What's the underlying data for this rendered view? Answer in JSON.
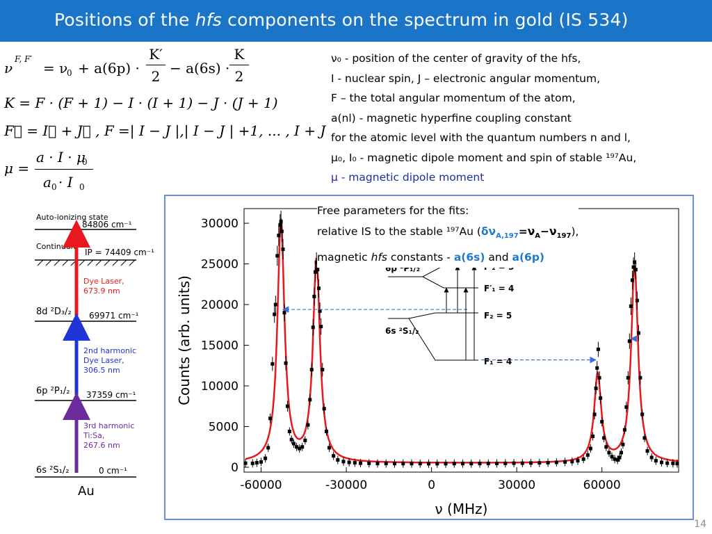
{
  "header": {
    "title_pre": "Positions of the ",
    "title_em": "hfs",
    "title_post": " components on the spectrum in gold (IS 534)"
  },
  "equations": {
    "e1_lhs": "ν",
    "e1_sup": "F, F′",
    "e1_eq": "= ν",
    "e1_sub0": "0",
    "e1_mid": "+ a(6p) ·",
    "e1_frac1_num": "K′",
    "e1_frac1_den": "2",
    "e1_mid2": "− a(6s) ·",
    "e1_frac2_num": "K",
    "e1_frac2_den": "2",
    "e2": "K = F · (F + 1) − I · (I + 1) − J · (J + 1)",
    "e3": "F⃗ = I⃗ + J⃗ ,    F =| I − J |,| I − J | +1, ... , I + J",
    "e4_lhs": "μ =",
    "e4_num": "a · I · μ",
    "e4_num_sub": "0",
    "e4_den": "a",
    "e4_den_sub1": "0",
    "e4_den_mid": " · I",
    "e4_den_sub2": "0"
  },
  "legend": {
    "l1": "ν₀ - position of the center of gravity of the hfs,",
    "l2": "I - nuclear spin, J – electronic angular momentum,",
    "l3": "F – the total angular momentum of the atom,",
    "l4": "a(nl)  - magnetic hyperfine coupling constant",
    "l5": "for the atomic level with the quantum numbers n and l,",
    "l6": "μ₀, I₀ - magnetic dipole moment and spin of stable ¹⁹⁷Au,",
    "l7": "μ - magnetic dipole moment"
  },
  "fit_note": {
    "line1": "Free parameters for the fits:",
    "line2_pre": "relative IS to the stable ¹⁹⁷Au (",
    "line2_blue": "δν",
    "line2_blue_sub": "A,197",
    "line2_eq": "=ν",
    "line2_sub_a": "A",
    "line2_minus": "−ν",
    "line2_sub_197": "197",
    "line2_post": "),",
    "line3_pre": "magnetic ",
    "line3_em": "hfs",
    "line3_mid": " constants - ",
    "line3_a6s": "a(6s)",
    "line3_and": " and ",
    "line3_a6p": "a(6p)"
  },
  "level_scheme": {
    "auto_ionizing": "Auto-ionizing state",
    "auto_energy": "84806 cm⁻¹",
    "continuum": "Continuum",
    "ip": "IP = 74409 cm⁻¹",
    "dye_laser_label": "Dye Laser,",
    "dye_laser_wl": "673.9 nm",
    "level_8d": "8d ²D₃/₂",
    "level_8d_energy": "69971 cm⁻¹",
    "harm2_1": "2nd harmonic",
    "harm2_2": "Dye Laser,",
    "harm2_3": "306.5 nm",
    "level_6p": "6p ²P₁/₂",
    "level_6p_energy": "37359 cm⁻¹",
    "harm3_1": "3rd harmonic",
    "harm3_2": "Ti:Sa,",
    "harm3_3": "267.6 nm",
    "level_6s": "6s ²S₁/₂",
    "level_6s_energy": "0 cm⁻¹",
    "element": "Au",
    "red": "#e8191e",
    "blue": "#1f35d9",
    "purple": "#6b2b9a"
  },
  "hfs_diagram": {
    "upper_level": "6p ²P₁/₂",
    "lower_level": "6s ²S₁/₂",
    "f2p": "F′₂ = 5",
    "f1p": "F′₁ = 4",
    "f2": "F₂ = 5",
    "f1": "F₁ = 4"
  },
  "chart_data": {
    "type": "scatter",
    "xlabel": "ν (MHz)",
    "ylabel": "Counts (arb. units)",
    "xlim": [
      -66000,
      87000
    ],
    "ylim": [
      -600,
      31800
    ],
    "xticks": [
      -60000,
      -30000,
      0,
      30000,
      60000
    ],
    "yticks": [
      0,
      5000,
      10000,
      15000,
      20000,
      25000,
      30000
    ],
    "peaks": [
      {
        "center": -53000,
        "height": 30200,
        "width": 1500
      },
      {
        "center": -40500,
        "height": 25300,
        "width": 1500
      },
      {
        "center": 58500,
        "height": 11300,
        "width": 1500
      },
      {
        "center": 71500,
        "height": 24600,
        "width": 1500
      }
    ],
    "baseline": 500,
    "points": [
      [
        -65500,
        500
      ],
      [
        -63000,
        480
      ],
      [
        -61500,
        550
      ],
      [
        -60000,
        650
      ],
      [
        -58500,
        1100
      ],
      [
        -57500,
        2400
      ],
      [
        -56800,
        6000
      ],
      [
        -56000,
        12700
      ],
      [
        -55300,
        18800
      ],
      [
        -54900,
        20000
      ],
      [
        -54300,
        26000
      ],
      [
        -53800,
        28500
      ],
      [
        -53300,
        29800
      ],
      [
        -53000,
        30200
      ],
      [
        -52700,
        29000
      ],
      [
        -52300,
        26800
      ],
      [
        -51800,
        19000
      ],
      [
        -51300,
        12800
      ],
      [
        -50700,
        7500
      ],
      [
        -50000,
        4400
      ],
      [
        -49300,
        3400
      ],
      [
        -48500,
        2900
      ],
      [
        -47500,
        2500
      ],
      [
        -46500,
        2300
      ],
      [
        -45500,
        2500
      ],
      [
        -44500,
        3300
      ],
      [
        -43500,
        5200
      ],
      [
        -42800,
        8300
      ],
      [
        -42200,
        12000
      ],
      [
        -41700,
        17200
      ],
      [
        -41300,
        21000
      ],
      [
        -40900,
        24000
      ],
      [
        -40500,
        25200
      ],
      [
        -40100,
        24300
      ],
      [
        -39700,
        22000
      ],
      [
        -39300,
        19200
      ],
      [
        -38900,
        17300
      ],
      [
        -38400,
        12000
      ],
      [
        -37800,
        7200
      ],
      [
        -37000,
        4400
      ],
      [
        -36000,
        2400
      ],
      [
        -34500,
        1400
      ],
      [
        -33000,
        900
      ],
      [
        -31000,
        700
      ],
      [
        -29000,
        600
      ],
      [
        -27000,
        550
      ],
      [
        -25000,
        500
      ],
      [
        -22000,
        480
      ],
      [
        -19000,
        460
      ],
      [
        -16000,
        460
      ],
      [
        -13000,
        450
      ],
      [
        -10000,
        450
      ],
      [
        -7000,
        450
      ],
      [
        -4000,
        450
      ],
      [
        -1000,
        440
      ],
      [
        2000,
        440
      ],
      [
        5000,
        440
      ],
      [
        8000,
        450
      ],
      [
        11000,
        450
      ],
      [
        14000,
        450
      ],
      [
        17000,
        460
      ],
      [
        20000,
        460
      ],
      [
        23000,
        470
      ],
      [
        26000,
        480
      ],
      [
        29000,
        500
      ],
      [
        32000,
        500
      ],
      [
        35000,
        520
      ],
      [
        38000,
        540
      ],
      [
        41000,
        560
      ],
      [
        44000,
        600
      ],
      [
        47000,
        650
      ],
      [
        49500,
        700
      ],
      [
        51500,
        800
      ],
      [
        53500,
        1000
      ],
      [
        55000,
        1500
      ],
      [
        56000,
        2300
      ],
      [
        56800,
        3800
      ],
      [
        57400,
        6500
      ],
      [
        57900,
        9700
      ],
      [
        58300,
        12200
      ],
      [
        58700,
        14500
      ],
      [
        59100,
        11000
      ],
      [
        59500,
        8500
      ],
      [
        60000,
        5600
      ],
      [
        60700,
        3600
      ],
      [
        61500,
        2500
      ],
      [
        62500,
        1800
      ],
      [
        63500,
        1300
      ],
      [
        64500,
        1000
      ],
      [
        65500,
        900
      ],
      [
        66200,
        1200
      ],
      [
        66800,
        1800
      ],
      [
        67400,
        2800
      ],
      [
        68000,
        4600
      ],
      [
        68600,
        7400
      ],
      [
        69200,
        11000
      ],
      [
        69700,
        15500
      ],
      [
        70200,
        19800
      ],
      [
        70700,
        23000
      ],
      [
        71100,
        24600
      ],
      [
        71500,
        25200
      ],
      [
        71900,
        24300
      ],
      [
        72400,
        20500
      ],
      [
        72900,
        16500
      ],
      [
        73500,
        11000
      ],
      [
        74200,
        6500
      ],
      [
        75000,
        3600
      ],
      [
        76000,
        2000
      ],
      [
        77500,
        1200
      ],
      [
        79000,
        800
      ],
      [
        81000,
        600
      ],
      [
        83000,
        500
      ],
      [
        85000,
        480
      ],
      [
        86500,
        450
      ]
    ]
  },
  "page": {
    "number": "14"
  }
}
